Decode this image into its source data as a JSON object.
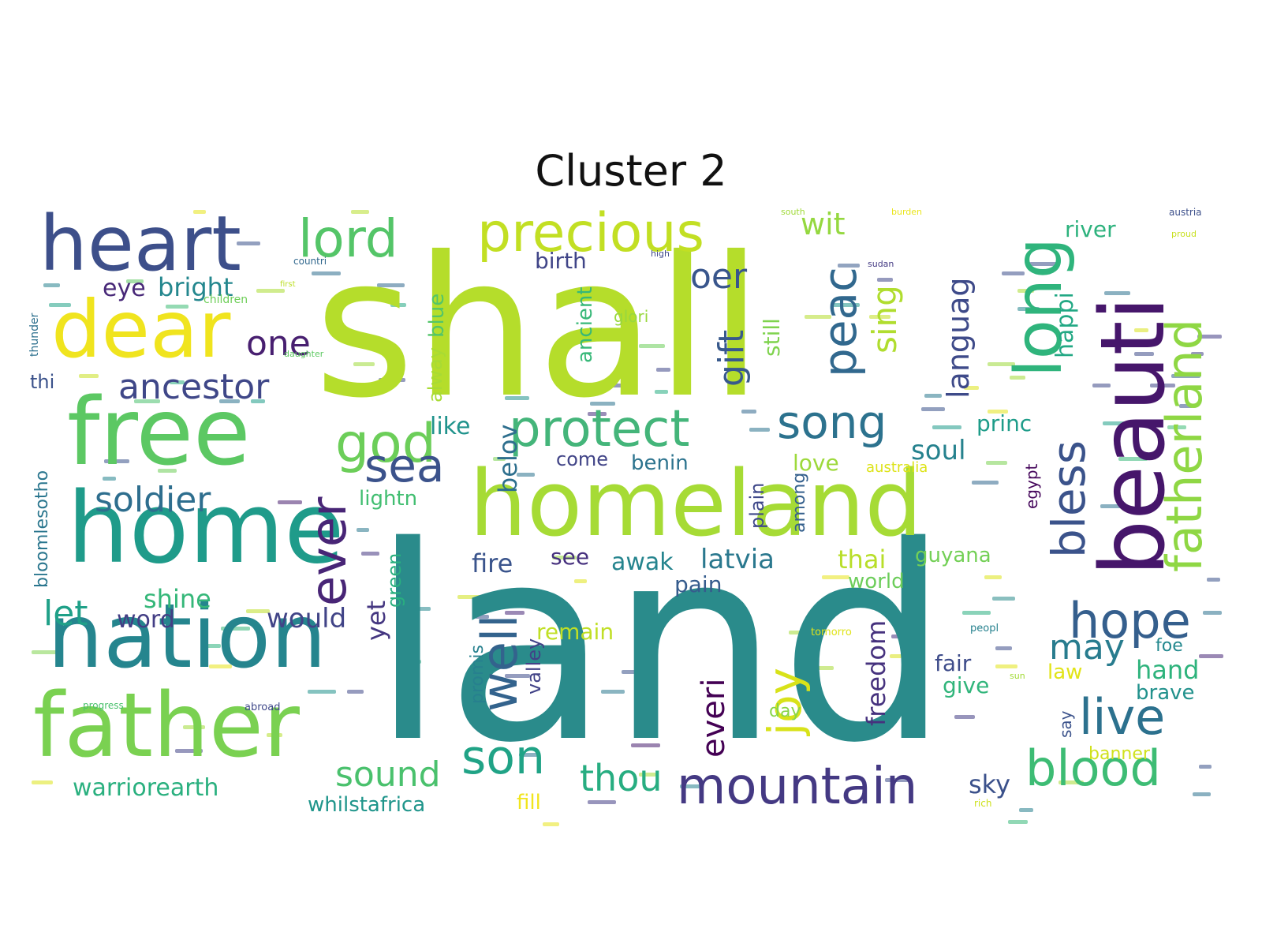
{
  "title": "Cluster 2",
  "palette": "viridis",
  "background": "#ffffff",
  "words": [
    {
      "text": "land",
      "color": "#2a8b8b"
    },
    {
      "text": "shall",
      "color": "#b5dd2b"
    },
    {
      "text": "homeland",
      "color": "#a6db35"
    },
    {
      "text": "beauti",
      "color": "#46166b"
    },
    {
      "text": "heart",
      "color": "#3d4f8a"
    },
    {
      "text": "dear",
      "color": "#f0e41e"
    },
    {
      "text": "free",
      "color": "#5cc863"
    },
    {
      "text": "home",
      "color": "#1f9b8a"
    },
    {
      "text": "nation",
      "color": "#25858e"
    },
    {
      "text": "father",
      "color": "#7ad151"
    },
    {
      "text": "long",
      "color": "#2fb47c"
    },
    {
      "text": "precious",
      "color": "#c2df23"
    },
    {
      "text": "lord",
      "color": "#54c568"
    },
    {
      "text": "fatherland",
      "color": "#8fd744"
    },
    {
      "text": "protect",
      "color": "#44b57a"
    },
    {
      "text": "god",
      "color": "#6cce59"
    },
    {
      "text": "song",
      "color": "#2c728e"
    },
    {
      "text": "bless",
      "color": "#3b538b"
    },
    {
      "text": "ever",
      "color": "#482576"
    },
    {
      "text": "peac",
      "color": "#31688e"
    },
    {
      "text": "sea",
      "color": "#3b528b"
    },
    {
      "text": "mountain",
      "color": "#443983"
    },
    {
      "text": "blood",
      "color": "#3dbc74"
    },
    {
      "text": "hope",
      "color": "#355f8d"
    },
    {
      "text": "live",
      "color": "#2c718e"
    },
    {
      "text": "well",
      "color": "#33638d"
    },
    {
      "text": "joy",
      "color": "#d8e219"
    },
    {
      "text": "son",
      "color": "#20a386"
    },
    {
      "text": "thou",
      "color": "#27ad81"
    },
    {
      "text": "sound",
      "color": "#4ac16d"
    },
    {
      "text": "soldier",
      "color": "#2e6e8e"
    },
    {
      "text": "ancestor",
      "color": "#3f4788"
    },
    {
      "text": "one",
      "color": "#481f70"
    },
    {
      "text": "bright",
      "color": "#24878e"
    },
    {
      "text": "eye",
      "color": "#482878"
    },
    {
      "text": "let",
      "color": "#1fa088"
    },
    {
      "text": "word",
      "color": "#433e85"
    },
    {
      "text": "shine",
      "color": "#35b779"
    },
    {
      "text": "would",
      "color": "#414487"
    },
    {
      "text": "yet",
      "color": "#453781"
    },
    {
      "text": "gift",
      "color": "#38598c"
    },
    {
      "text": "oer",
      "color": "#39568c"
    },
    {
      "text": "wit",
      "color": "#95d840"
    },
    {
      "text": "sing",
      "color": "#b0dd2f"
    },
    {
      "text": "languag",
      "color": "#3e4a89"
    },
    {
      "text": "river",
      "color": "#2db27d"
    },
    {
      "text": "birth",
      "color": "#404588"
    },
    {
      "text": "happi",
      "color": "#22a884"
    },
    {
      "text": "soul",
      "color": "#26828e"
    },
    {
      "text": "princ",
      "color": "#1e9c89"
    },
    {
      "text": "love",
      "color": "#9dd93b"
    },
    {
      "text": "latvia",
      "color": "#2a788e"
    },
    {
      "text": "guyana",
      "color": "#73d056"
    },
    {
      "text": "thai",
      "color": "#b8de29"
    },
    {
      "text": "world",
      "color": "#6ccd5a"
    },
    {
      "text": "may",
      "color": "#287c8e"
    },
    {
      "text": "fair",
      "color": "#3e4c8a"
    },
    {
      "text": "give",
      "color": "#31b57b"
    },
    {
      "text": "hand",
      "color": "#2eb37c"
    },
    {
      "text": "brave",
      "color": "#21918c"
    },
    {
      "text": "foe",
      "color": "#23888e"
    },
    {
      "text": "law",
      "color": "#e2e418"
    },
    {
      "text": "sky",
      "color": "#3b518b"
    },
    {
      "text": "banner",
      "color": "#d0e11c"
    },
    {
      "text": "freedom",
      "color": "#46327e"
    },
    {
      "text": "everi",
      "color": "#440154"
    },
    {
      "text": "remain",
      "color": "#c0df25"
    },
    {
      "text": "pain",
      "color": "#365c8d"
    },
    {
      "text": "awak",
      "color": "#25848e"
    },
    {
      "text": "see",
      "color": "#46307e"
    },
    {
      "text": "fire",
      "color": "#3a548c"
    },
    {
      "text": "benin",
      "color": "#2c738e"
    },
    {
      "text": "come",
      "color": "#414487"
    },
    {
      "text": "like",
      "color": "#20938c"
    },
    {
      "text": "lightn",
      "color": "#42be71"
    },
    {
      "text": "belov",
      "color": "#2e6f8e"
    },
    {
      "text": "alway",
      "color": "#a8db34"
    },
    {
      "text": "blue",
      "color": "#52c569"
    },
    {
      "text": "ancient",
      "color": "#37b878"
    },
    {
      "text": "glori",
      "color": "#99d83e"
    },
    {
      "text": "still",
      "color": "#7fd34e"
    },
    {
      "text": "plain",
      "color": "#3f4889"
    },
    {
      "text": "among",
      "color": "#35608d"
    },
    {
      "text": "green",
      "color": "#29af7f"
    },
    {
      "text": "valley",
      "color": "#414287"
    },
    {
      "text": "promis",
      "color": "#27808e"
    },
    {
      "text": "day",
      "color": "#88d548"
    },
    {
      "text": "fill",
      "color": "#f1e51d"
    },
    {
      "text": "warriorearth",
      "color": "#2ab07f"
    },
    {
      "text": "whilstafrica",
      "color": "#1f958b"
    },
    {
      "text": "bloomlesotho",
      "color": "#2a768e"
    },
    {
      "text": "thi",
      "color": "#3b528b"
    },
    {
      "text": "thunder",
      "color": "#2d708e"
    },
    {
      "text": "australia",
      "color": "#dde318"
    },
    {
      "text": "egypt",
      "color": "#46085c"
    },
    {
      "text": "say",
      "color": "#3b528b"
    },
    {
      "text": "children",
      "color": "#6ece58"
    },
    {
      "text": "countri",
      "color": "#31688e"
    },
    {
      "text": "first",
      "color": "#bddf26"
    },
    {
      "text": "austria",
      "color": "#3c4f8a"
    },
    {
      "text": "proud",
      "color": "#c8e020"
    },
    {
      "text": "sudan",
      "color": "#443a83"
    },
    {
      "text": "burden",
      "color": "#eae51a"
    },
    {
      "text": "south",
      "color": "#a0da39"
    },
    {
      "text": "abroad",
      "color": "#3f4889"
    },
    {
      "text": "progress",
      "color": "#4ac16d"
    },
    {
      "text": "daughter",
      "color": "#5ec962"
    },
    {
      "text": "tomorro",
      "color": "#dfe318"
    },
    {
      "text": "peopl",
      "color": "#26818e"
    },
    {
      "text": "rich",
      "color": "#cde11d"
    },
    {
      "text": "sun",
      "color": "#a2da37"
    },
    {
      "text": "high",
      "color": "#3e4989"
    }
  ]
}
